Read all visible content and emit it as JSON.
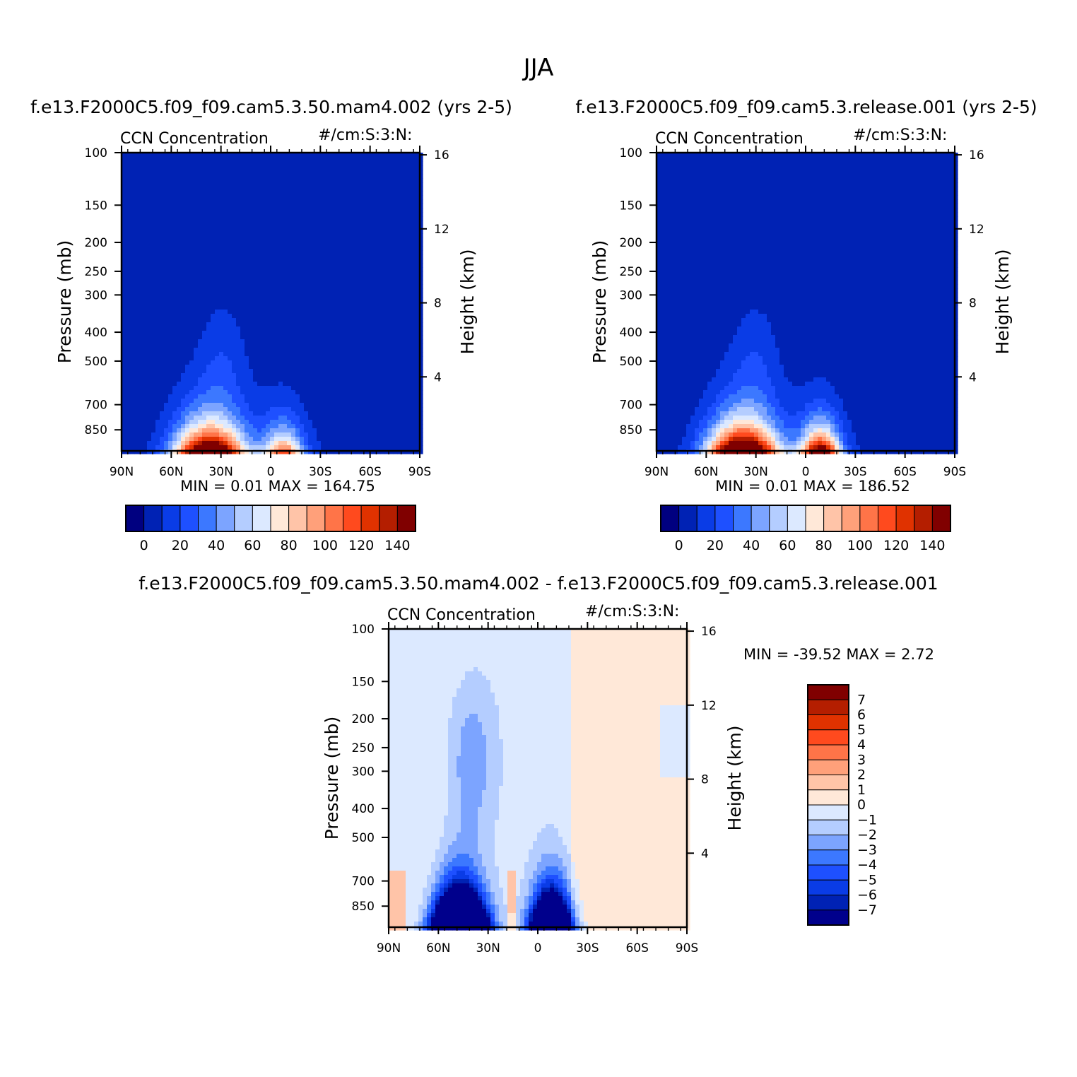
{
  "page_title": "JJA",
  "colors": {
    "abs": [
      "#000080",
      "#0022b4",
      "#0a3ce6",
      "#1e50ff",
      "#3c78ff",
      "#7ca4ff",
      "#b4cdff",
      "#dce9ff",
      "#ffe8d8",
      "#ffc4a8",
      "#ffa07a",
      "#ff7448",
      "#ff4a1e",
      "#e03200",
      "#b41e00",
      "#800000"
    ],
    "diff": [
      "#00008c",
      "#0022b4",
      "#0a3ce6",
      "#1e50ff",
      "#3c78ff",
      "#7ca4ff",
      "#b4cdff",
      "#dce9ff",
      "#ffe8d8",
      "#ffc4a8",
      "#ffa07a",
      "#ff7448",
      "#ff4a1e",
      "#e03200",
      "#b41e00",
      "#800000"
    ]
  },
  "chart_data": [
    {
      "type": "heatmap",
      "id": "panel_a",
      "title": "f.e13.F2000C5.f09_f09.cam5.3.50.mam4.002 (yrs 2-5)",
      "left_label": "CCN Concentration",
      "right_label": "#/cm:S:3:N:",
      "xlabel": "",
      "ylabel": "Pressure (mb)",
      "y2label": "Height (km)",
      "x_ticks": [
        "90N",
        "60N",
        "30N",
        "0",
        "30S",
        "60S",
        "90S"
      ],
      "y_ticks": [
        "100",
        "150",
        "200",
        "250",
        "300",
        "400",
        "500",
        "700",
        "850"
      ],
      "y2_ticks": [
        "16",
        "12",
        "8",
        "4"
      ],
      "stats": "MIN =    0.01   MAX =  164.75",
      "min": 0.01,
      "max": 164.75,
      "levels": [
        0,
        10,
        20,
        30,
        40,
        50,
        60,
        70,
        80,
        90,
        100,
        110,
        120,
        130,
        140
      ],
      "colorbar_labels": [
        "0",
        "20",
        "40",
        "60",
        "80",
        "100",
        "120",
        "140"
      ],
      "features": [
        {
          "lat": 37,
          "p": 1000,
          "amp": 165
        },
        {
          "lat": -8,
          "p": 1000,
          "amp": 95
        }
      ]
    },
    {
      "type": "heatmap",
      "id": "panel_b",
      "title": "f.e13.F2000C5.f09_f09.cam5.3.release.001 (yrs 2-5)",
      "left_label": "CCN Concentration",
      "right_label": "#/cm:S:3:N:",
      "xlabel": "",
      "ylabel": "Pressure (mb)",
      "y2label": "Height (km)",
      "x_ticks": [
        "90N",
        "60N",
        "30N",
        "0",
        "30S",
        "60S",
        "90S"
      ],
      "y_ticks": [
        "100",
        "150",
        "200",
        "250",
        "300",
        "400",
        "500",
        "700",
        "850"
      ],
      "y2_ticks": [
        "16",
        "12",
        "8",
        "4"
      ],
      "stats": "MIN =    0.01   MAX =  186.52",
      "min": 0.01,
      "max": 186.52,
      "levels": [
        0,
        10,
        20,
        30,
        40,
        50,
        60,
        70,
        80,
        90,
        100,
        110,
        120,
        130,
        140
      ],
      "colorbar_labels": [
        "0",
        "20",
        "40",
        "60",
        "80",
        "100",
        "120",
        "140"
      ],
      "features": [
        {
          "lat": 38,
          "p": 1000,
          "amp": 186
        },
        {
          "lat": -9,
          "p": 1000,
          "amp": 150
        }
      ]
    },
    {
      "type": "heatmap",
      "id": "panel_diff",
      "title": "f.e13.F2000C5.f09_f09.cam5.3.50.mam4.002 - f.e13.F2000C5.f09_f09.cam5.3.release.001",
      "left_label": "CCN Concentration",
      "right_label": "#/cm:S:3:N:",
      "xlabel": "",
      "ylabel": "Pressure (mb)",
      "y2label": "Height (km)",
      "x_ticks": [
        "90N",
        "60N",
        "30N",
        "0",
        "30S",
        "60S",
        "90S"
      ],
      "y_ticks": [
        "100",
        "150",
        "200",
        "250",
        "300",
        "400",
        "500",
        "700",
        "850"
      ],
      "y2_ticks": [
        "16",
        "12",
        "8",
        "4"
      ],
      "stats": "MIN = -39.52   MAX =    2.72",
      "min": -39.52,
      "max": 2.72,
      "levels": [
        -7,
        -6,
        -5,
        -4,
        -3,
        -2,
        -1,
        0,
        1,
        2,
        3,
        4,
        5,
        6,
        7
      ],
      "colorbar_labels": [
        "7",
        "6",
        "5",
        "4",
        "3",
        "2",
        "1",
        "0",
        "-1",
        "-2",
        "-3",
        "-4",
        "-5",
        "-6",
        "-7"
      ],
      "features": [
        {
          "lat": 47,
          "p": 1000,
          "amp": -38
        },
        {
          "lat": -8,
          "p": 1000,
          "amp": -28
        }
      ]
    }
  ]
}
